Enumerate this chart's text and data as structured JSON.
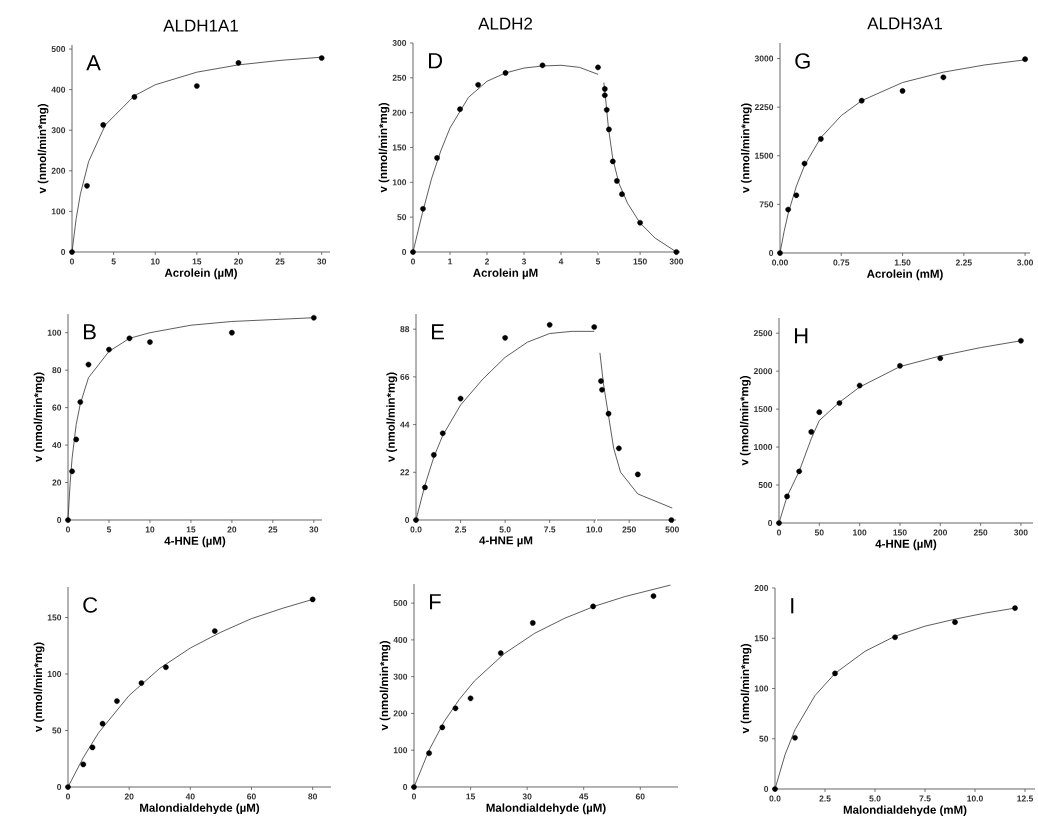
{
  "chart_data": [
    {
      "type": "scatter",
      "title": "ALDH1A1",
      "xlabel": "Acrolein (µM)",
      "ylabel": "v (nmol/min*mg)",
      "annotations": [
        "A"
      ],
      "xlim": [
        0,
        31
      ],
      "ylim": [
        0,
        510
      ],
      "xticks": [
        0,
        5,
        10,
        15,
        20,
        25,
        30
      ],
      "yticks": [
        0,
        100,
        200,
        300,
        400,
        500
      ],
      "series": [
        {
          "type": "scatter",
          "marker": "circle",
          "color": "#000000",
          "x": [
            0,
            1.8,
            3.75,
            7.5,
            15,
            20,
            30
          ],
          "values": [
            0,
            163,
            313,
            382,
            409,
            466,
            478
          ]
        },
        {
          "type": "line",
          "color": "#333333",
          "x": [
            0,
            0.5,
            1,
            2,
            4,
            7.5,
            10,
            15,
            20,
            25,
            30
          ],
          "values": [
            0,
            82,
            142,
            223,
            313,
            385,
            412,
            443,
            461,
            472,
            480
          ]
        }
      ]
    },
    {
      "type": "scatter",
      "title": "ALDH2",
      "xlabel": "Acrolein µM",
      "ylabel": "v (nmol/min*mg)",
      "annotations": [
        "D"
      ],
      "xlim": [
        0,
        5
      ],
      "ylim": [
        0,
        300
      ],
      "xticks": [
        0,
        1,
        2,
        3,
        4,
        5
      ],
      "yticks": [
        0,
        50,
        100,
        150,
        200,
        250,
        300
      ],
      "series": [
        {
          "type": "scatter",
          "marker": "circle",
          "color": "#000000",
          "x": [
            0,
            0.27,
            0.65,
            1.27,
            1.76,
            2.5,
            3.5,
            5
          ],
          "values": [
            0,
            62,
            135,
            205,
            240,
            257,
            268,
            265
          ]
        },
        {
          "type": "line",
          "color": "#333333",
          "x": [
            0,
            0.25,
            0.5,
            0.75,
            1,
            1.5,
            2,
            2.5,
            3,
            3.5,
            4,
            4.5,
            5
          ],
          "values": [
            0,
            55,
            105,
            145,
            178,
            222,
            245,
            257,
            264,
            267,
            268,
            265,
            255
          ]
        }
      ]
    },
    {
      "type": "scatter",
      "xlim": [
        -20,
        315
      ],
      "ylim": [
        0,
        300
      ],
      "xticks": [
        150,
        300
      ],
      "yticks": [
        0,
        50,
        100,
        150,
        200,
        250,
        300
      ],
      "tick_labels": "x",
      "series": [
        {
          "type": "scatter",
          "marker": "circle",
          "color": "#000000",
          "x": [
            4,
            4,
            12,
            21,
            37,
            54,
            75,
            150,
            300
          ],
          "values": [
            234,
            225,
            204,
            176,
            130,
            102,
            83,
            42,
            0
          ]
        },
        {
          "type": "line",
          "color": "#333333",
          "x": [
            0,
            5,
            19,
            37,
            62,
            98,
            149,
            212,
            300
          ],
          "values": [
            243,
            228,
            178,
            134,
            99,
            70,
            42,
            20,
            0
          ]
        }
      ]
    },
    {
      "type": "scatter",
      "title": "ALDH3A1",
      "xlabel": "Acrolein (mM)",
      "ylabel": "v (nmol/min*mg)",
      "annotations": [
        "G"
      ],
      "xlim": [
        0,
        3.06
      ],
      "ylim": [
        0,
        3240
      ],
      "xticks": [
        {
          "value": 0,
          "label": "0.00"
        },
        0.75,
        {
          "value": 1.5,
          "label": "1.50"
        },
        2.25,
        {
          "value": 3,
          "label": "3.00"
        }
      ],
      "yticks": [
        0,
        750,
        1500,
        2250,
        3000
      ],
      "series": [
        {
          "type": "scatter",
          "marker": "circle",
          "color": "#000000",
          "x": [
            0,
            0.1,
            0.2,
            0.3,
            0.5,
            1,
            1.5,
            2,
            3
          ],
          "values": [
            0,
            670,
            890,
            1380,
            1760,
            2350,
            2500,
            2710,
            2990
          ]
        },
        {
          "type": "line",
          "color": "#333333",
          "x": [
            0,
            0.05,
            0.1,
            0.2,
            0.3,
            0.5,
            0.75,
            1,
            1.5,
            2,
            2.5,
            3
          ],
          "values": [
            0,
            330,
            610,
            1030,
            1350,
            1780,
            2120,
            2350,
            2630,
            2790,
            2900,
            2980
          ]
        }
      ]
    },
    {
      "type": "scatter",
      "xlabel": "4-HNE (µM)",
      "ylabel": "v (nmol/min*mg)",
      "annotations": [
        "B"
      ],
      "xlim": [
        0,
        31
      ],
      "ylim": [
        0,
        110
      ],
      "xticks": [
        0,
        5,
        10,
        15,
        20,
        25,
        30
      ],
      "yticks": [
        0,
        20,
        40,
        60,
        80,
        100
      ],
      "series": [
        {
          "type": "scatter",
          "marker": "circle",
          "color": "#000000",
          "x": [
            0,
            0.5,
            1,
            1.5,
            2.5,
            5,
            7.5,
            10,
            20,
            30
          ],
          "values": [
            0,
            26,
            43,
            63,
            83,
            91,
            97,
            95,
            100,
            108
          ]
        },
        {
          "type": "line",
          "color": "#333333",
          "x": [
            0,
            0.25,
            0.5,
            1,
            1.5,
            2.5,
            5,
            7.5,
            10,
            15,
            20,
            25,
            30
          ],
          "values": [
            0,
            19,
            33,
            51,
            62,
            76,
            90,
            97,
            100,
            104,
            106,
            107,
            108
          ]
        }
      ]
    },
    {
      "type": "scatter",
      "xlabel": "4-HNE µM",
      "ylabel": "v (nmol/min*mg)",
      "annotations": [
        "E"
      ],
      "xlim": [
        0,
        10.1
      ],
      "ylim": [
        0,
        95
      ],
      "xticks": [
        {
          "value": 0,
          "label": "0.0"
        },
        2.5,
        {
          "value": 5,
          "label": "5.0"
        },
        7.5,
        {
          "value": 10,
          "label": "10.0"
        }
      ],
      "yticks": [
        0,
        22,
        44,
        66,
        88
      ],
      "series": [
        {
          "type": "scatter",
          "marker": "circle",
          "color": "#000000",
          "x": [
            0,
            0.5,
            1,
            1.5,
            2.5,
            5,
            7.5,
            10
          ],
          "values": [
            0,
            15,
            30,
            40,
            56,
            84,
            90,
            89
          ]
        },
        {
          "type": "line",
          "color": "#333333",
          "x": [
            0,
            0.5,
            1,
            1.5,
            2.5,
            3.75,
            5,
            6.25,
            7.5,
            8.75,
            10
          ],
          "values": [
            0,
            16,
            29,
            39,
            53,
            65,
            75,
            82,
            86,
            87,
            87
          ]
        }
      ]
    },
    {
      "type": "scatter",
      "xlim": [
        63,
        522
      ],
      "ylim": [
        0,
        88
      ],
      "xticks": [
        250,
        500
      ],
      "yticks": [
        0,
        22,
        44,
        66,
        88
      ],
      "tick_labels": "x",
      "series": [
        {
          "type": "scatter",
          "marker": "circle",
          "color": "#000000",
          "x": [
            86,
            92,
            130,
            190,
            300,
            495
          ],
          "values": [
            64,
            60,
            49,
            33,
            21,
            0
          ]
        },
        {
          "type": "line",
          "color": "#333333",
          "x": [
            80,
            100,
            130,
            160,
            200,
            300,
            500
          ],
          "values": [
            77,
            63,
            48,
            33,
            22,
            12,
            5.5
          ]
        }
      ]
    },
    {
      "type": "scatter",
      "xlabel": "4-HNE (µM)",
      "ylabel": "v (nmol/min*mg)",
      "annotations": [
        "H"
      ],
      "xlim": [
        0,
        315
      ],
      "ylim": [
        0,
        2700
      ],
      "xticks": [
        0,
        50,
        100,
        150,
        200,
        250,
        300
      ],
      "yticks": [
        0,
        500,
        1000,
        1500,
        2000,
        2500
      ],
      "series": [
        {
          "type": "scatter",
          "marker": "circle",
          "color": "#000000",
          "x": [
            0,
            10,
            25,
            40,
            50,
            75,
            100,
            150,
            200,
            300
          ],
          "values": [
            0,
            350,
            680,
            1200,
            1460,
            1580,
            1810,
            2070,
            2170,
            2400
          ]
        },
        {
          "type": "line",
          "color": "#333333",
          "x": [
            0,
            10,
            25,
            40,
            50,
            75,
            100,
            150,
            200,
            250,
            300
          ],
          "values": [
            0,
            350,
            680,
            1110,
            1350,
            1590,
            1790,
            2060,
            2200,
            2310,
            2400
          ]
        }
      ]
    },
    {
      "type": "scatter",
      "xlabel": "Malondialdehyde (µM)",
      "ylabel": "v (nmol/min*mg)",
      "annotations": [
        "C"
      ],
      "xlim": [
        0,
        86
      ],
      "ylim": [
        0,
        177
      ],
      "xticks": [
        0,
        20,
        40,
        60,
        80
      ],
      "yticks": [
        0,
        50,
        100,
        150
      ],
      "series": [
        {
          "type": "scatter",
          "marker": "circle",
          "color": "#000000",
          "x": [
            0,
            5,
            8,
            11.3,
            16,
            24,
            32,
            48,
            80
          ],
          "values": [
            0,
            20,
            35,
            56,
            76,
            92,
            106,
            138,
            166
          ]
        },
        {
          "type": "line",
          "color": "#333333",
          "x": [
            0,
            5,
            10,
            20,
            30,
            40,
            50,
            60,
            70,
            80
          ],
          "values": [
            0,
            26,
            48,
            81,
            105,
            123,
            137,
            149,
            158,
            166
          ]
        }
      ]
    },
    {
      "type": "scatter",
      "xlabel": "Malondialdehyde (µM)",
      "ylabel": "v (nmol/min*mg)",
      "annotations": [
        "F"
      ],
      "xlim": [
        0,
        70
      ],
      "ylim": [
        0,
        552
      ],
      "xticks": [
        0,
        15,
        30,
        45,
        60
      ],
      "yticks": [
        0,
        100,
        200,
        300,
        400,
        500
      ],
      "series": [
        {
          "type": "scatter",
          "marker": "circle",
          "color": "#000000",
          "x": [
            0,
            4,
            7.5,
            11,
            15,
            23,
            31.5,
            47.5,
            63.5
          ],
          "values": [
            0,
            92,
            162,
            214,
            241,
            364,
            446,
            491,
            519
          ]
        },
        {
          "type": "line",
          "color": "#333333",
          "x": [
            0,
            4,
            8,
            12,
            16,
            24,
            32,
            40,
            48,
            56,
            68
          ],
          "values": [
            0,
            100,
            178,
            238,
            288,
            363,
            418,
            459,
            492,
            518,
            549
          ]
        }
      ]
    },
    {
      "type": "scatter",
      "xlabel": "Malondialdehyde (mM)",
      "ylabel": "v (nmol/min*mg)",
      "annotations": [
        "I"
      ],
      "xlim": [
        0,
        13
      ],
      "ylim": [
        0,
        200
      ],
      "xticks": [
        {
          "value": 0,
          "label": "0.0"
        },
        2.5,
        {
          "value": 5,
          "label": "5.0"
        },
        7.5,
        {
          "value": 10,
          "label": "10.0"
        },
        12.5
      ],
      "yticks": [
        0,
        50,
        100,
        150,
        200
      ],
      "series": [
        {
          "type": "scatter",
          "marker": "circle",
          "color": "#000000",
          "x": [
            0,
            1,
            3,
            6,
            9,
            12
          ],
          "values": [
            0,
            51,
            115,
            151,
            166,
            180
          ]
        },
        {
          "type": "line",
          "color": "#333333",
          "x": [
            0,
            0.5,
            1,
            2,
            3,
            4.5,
            6,
            7.5,
            9,
            10.5,
            12
          ],
          "values": [
            0,
            34,
            59,
            93,
            115,
            137,
            152,
            162,
            169,
            175,
            180
          ]
        }
      ]
    }
  ]
}
